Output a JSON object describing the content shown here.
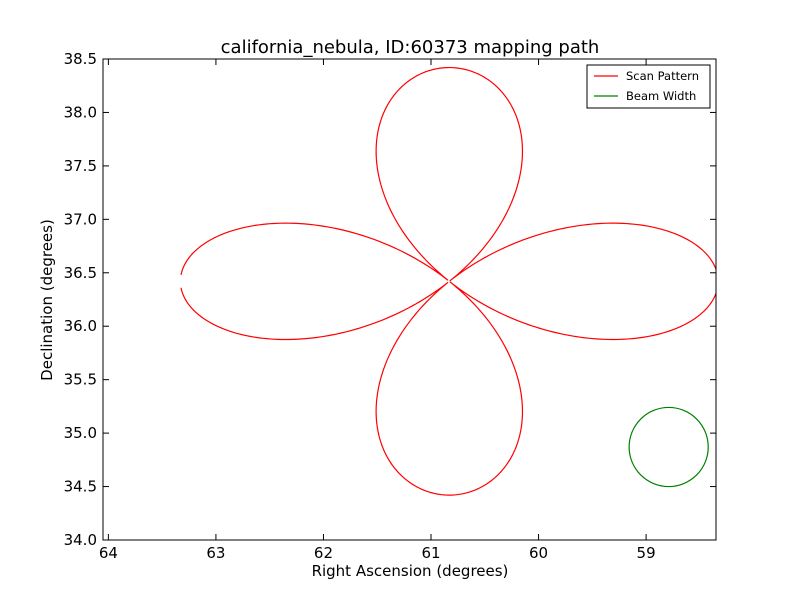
{
  "chart_data": {
    "type": "line",
    "title": "california_nebula, ID:60373 mapping path",
    "xlabel": "Right Ascension (degrees)",
    "ylabel": "Declination (degrees)",
    "xlim": [
      64.05,
      58.35
    ],
    "ylim": [
      34.0,
      38.5
    ],
    "x_invert": true,
    "grid": false,
    "legend_position": "top-right",
    "xticks": [
      64,
      63,
      62,
      61,
      60,
      59
    ],
    "yticks": [
      34.0,
      34.5,
      35.0,
      35.5,
      36.0,
      36.5,
      37.0,
      37.5,
      38.0,
      38.5
    ],
    "xtick_labels": [
      "64",
      "63",
      "62",
      "61",
      "60",
      "59"
    ],
    "ytick_labels": [
      "34.0",
      "34.5",
      "35.0",
      "35.5",
      "36.0",
      "36.5",
      "37.0",
      "37.5",
      "38.0",
      "38.5"
    ],
    "series": [
      {
        "name": "Scan Pattern",
        "color": "#ff0000",
        "kind": "four-petal rose scan",
        "center": [
          60.83,
          36.42
        ],
        "petal_extent_ra": 2.5,
        "petal_extent_dec": 2.0,
        "start": [
          63.34,
          36.43
        ],
        "end": [
          63.31,
          36.37
        ]
      },
      {
        "name": "Beam Width",
        "color": "#008000",
        "kind": "circle",
        "center": [
          58.79,
          34.87
        ],
        "radius_dec": 0.37
      }
    ]
  }
}
